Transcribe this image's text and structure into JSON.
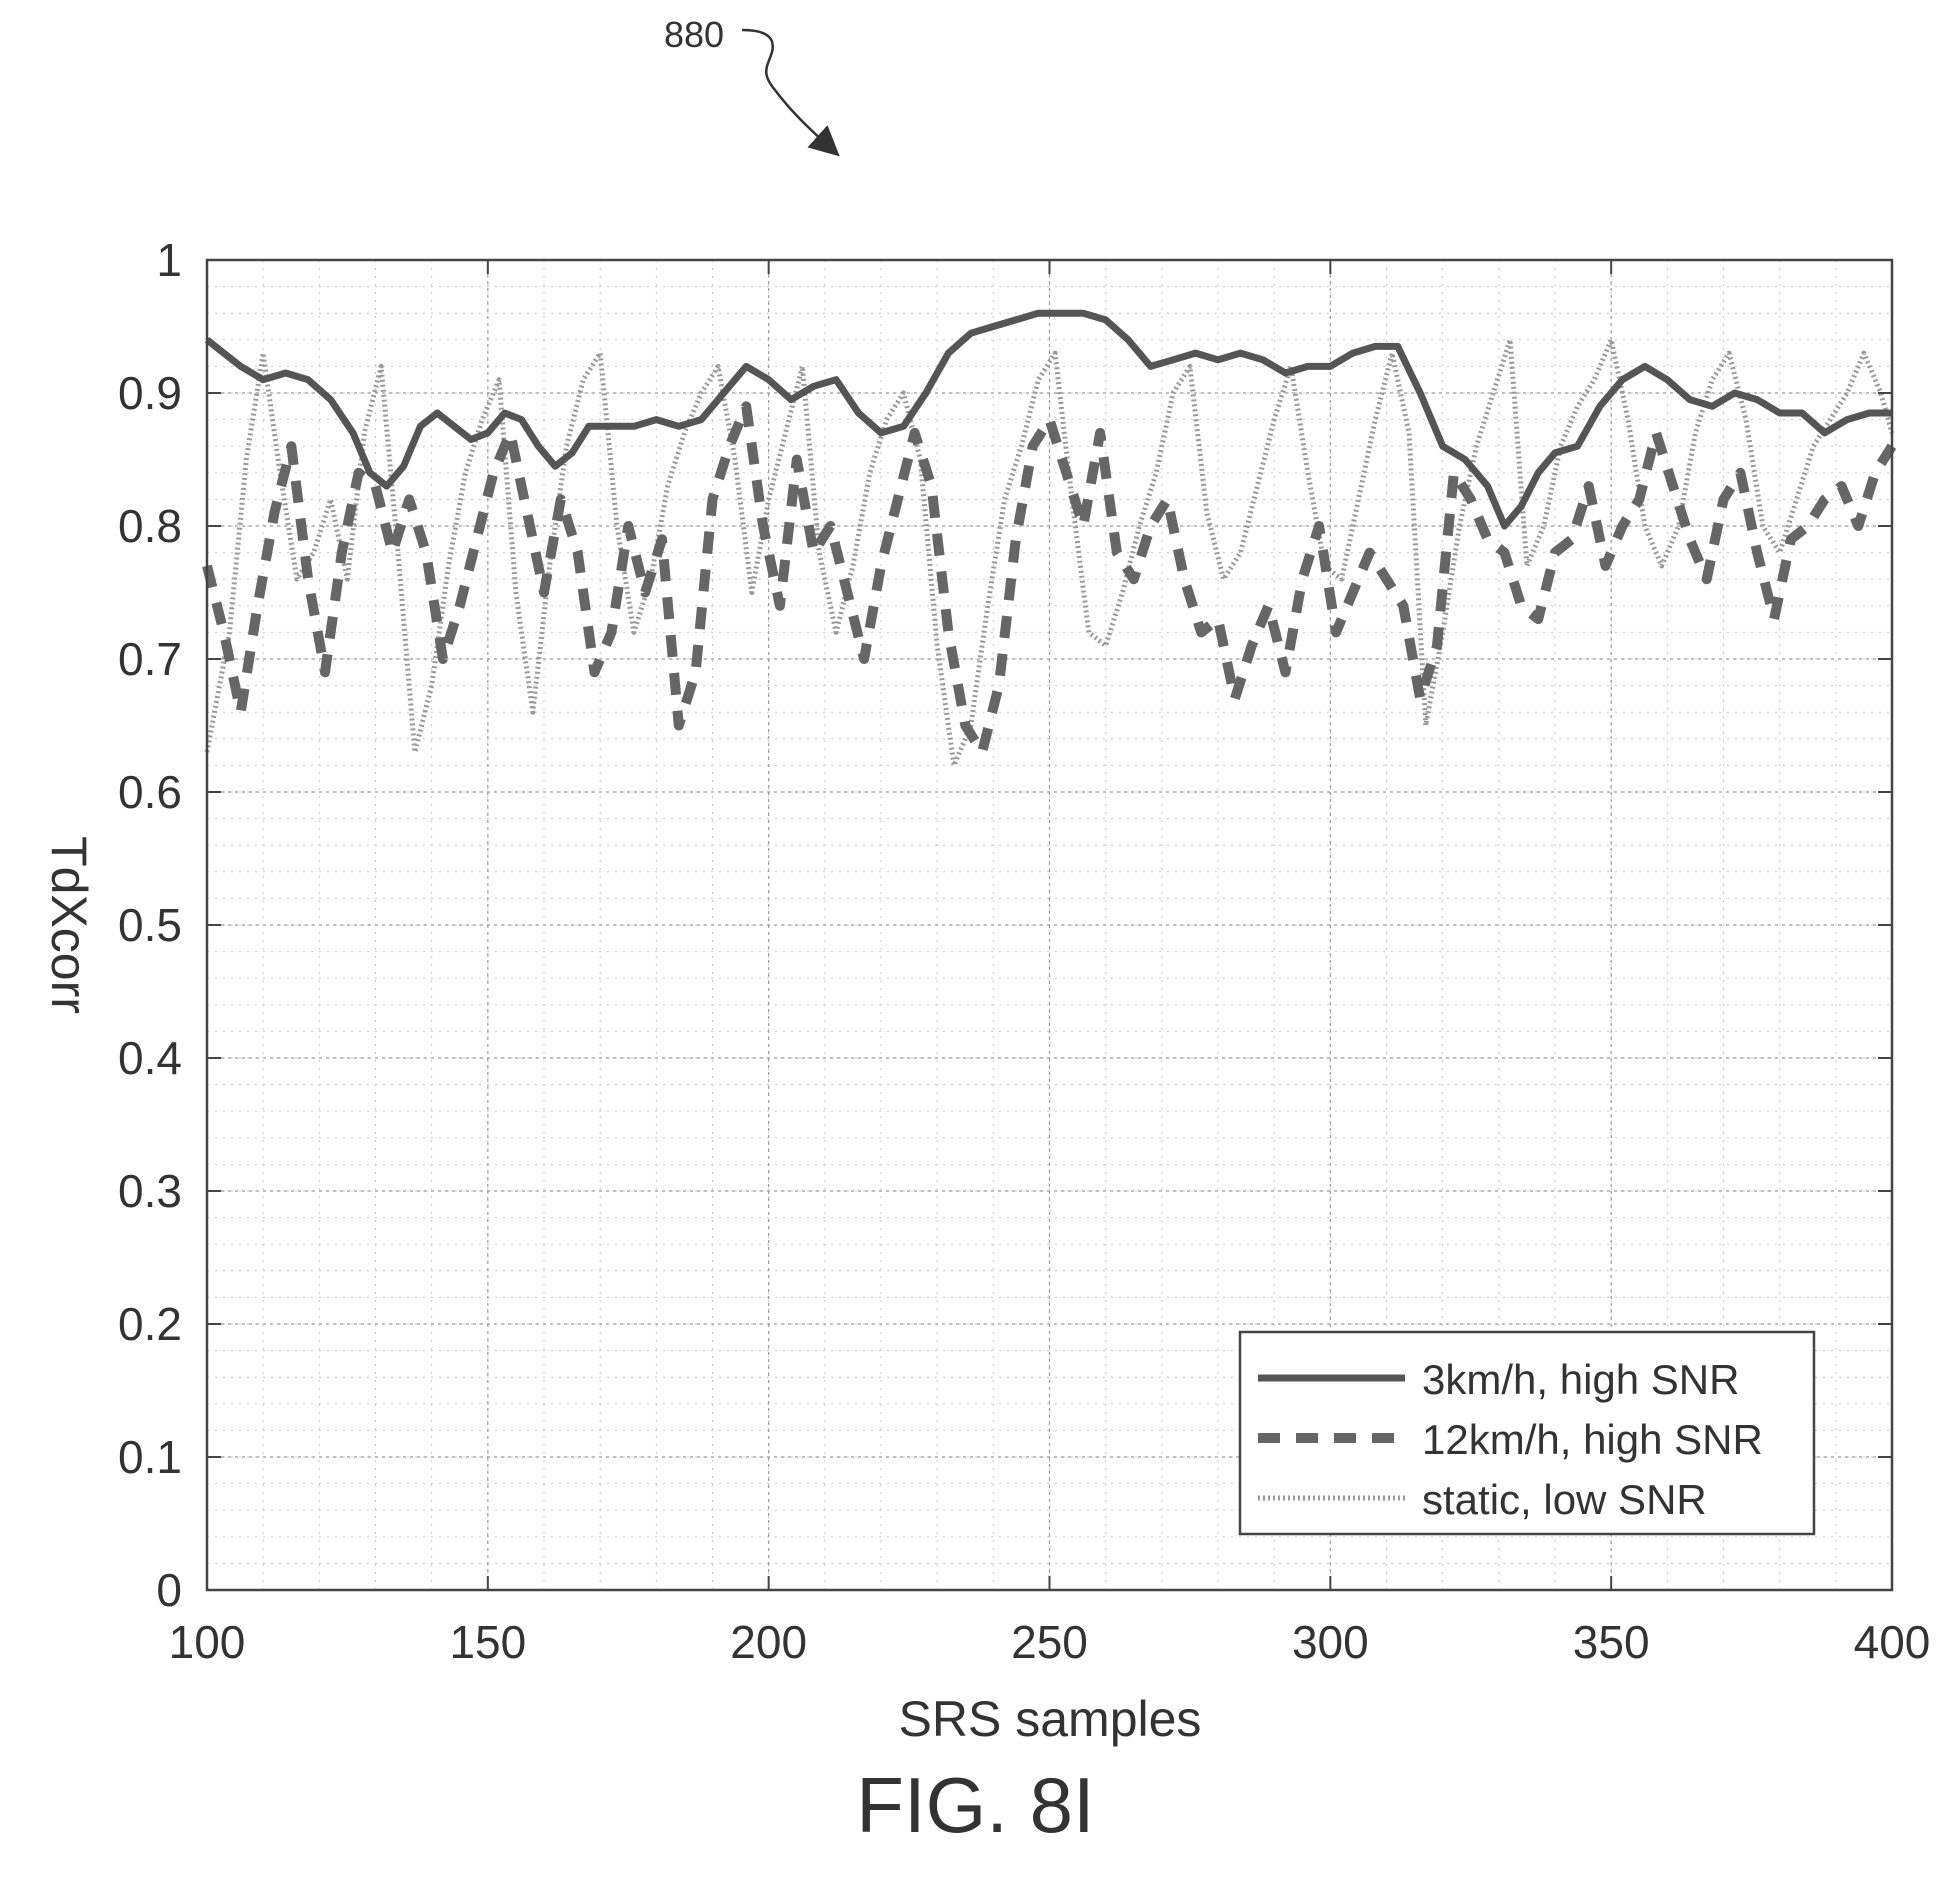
{
  "figure": {
    "caption": "FIG. 8I",
    "reference_numeral": "880"
  },
  "chart_data": {
    "type": "line",
    "xlabel": "SRS samples",
    "ylabel": "TdXcorr",
    "xlim": [
      100,
      400
    ],
    "ylim": [
      0,
      1
    ],
    "xticks": [
      100,
      150,
      200,
      250,
      300,
      350,
      400
    ],
    "yticks": [
      0,
      0.1,
      0.2,
      0.3,
      0.4,
      0.5,
      0.6,
      0.7,
      0.8,
      0.9,
      1
    ],
    "ytick_labels": [
      "0",
      "0.1",
      "0.2",
      "0.3",
      "0.4",
      "0.5",
      "0.6",
      "0.7",
      "0.8",
      "0.9",
      "1"
    ],
    "grid": true,
    "minor_grid": true,
    "legend_position": "bottom-right",
    "series": [
      {
        "name": "3km/h, high SNR",
        "style": "solid",
        "color": "#555555",
        "x": [
          100,
          103,
          106,
          110,
          114,
          118,
          122,
          126,
          129,
          132,
          135,
          138,
          141,
          144,
          147,
          150,
          153,
          156,
          159,
          162,
          165,
          168,
          172,
          176,
          180,
          184,
          188,
          192,
          196,
          200,
          204,
          208,
          212,
          216,
          220,
          224,
          228,
          232,
          236,
          240,
          244,
          248,
          252,
          256,
          260,
          264,
          268,
          272,
          276,
          280,
          284,
          288,
          292,
          296,
          300,
          304,
          308,
          312,
          316,
          320,
          324,
          328,
          331,
          334,
          337,
          340,
          344,
          348,
          352,
          356,
          360,
          364,
          368,
          372,
          376,
          380,
          384,
          388,
          392,
          396,
          400
        ],
        "y": [
          0.94,
          0.93,
          0.92,
          0.91,
          0.915,
          0.91,
          0.895,
          0.87,
          0.84,
          0.83,
          0.845,
          0.875,
          0.885,
          0.875,
          0.865,
          0.87,
          0.885,
          0.88,
          0.86,
          0.845,
          0.855,
          0.875,
          0.875,
          0.875,
          0.88,
          0.875,
          0.88,
          0.9,
          0.92,
          0.91,
          0.895,
          0.905,
          0.91,
          0.885,
          0.87,
          0.875,
          0.9,
          0.93,
          0.945,
          0.95,
          0.955,
          0.96,
          0.96,
          0.96,
          0.955,
          0.94,
          0.92,
          0.925,
          0.93,
          0.925,
          0.93,
          0.925,
          0.915,
          0.92,
          0.92,
          0.93,
          0.935,
          0.935,
          0.9,
          0.86,
          0.85,
          0.83,
          0.8,
          0.815,
          0.84,
          0.855,
          0.86,
          0.89,
          0.91,
          0.92,
          0.91,
          0.895,
          0.89,
          0.9,
          0.895,
          0.885,
          0.885,
          0.87,
          0.88,
          0.885,
          0.885
        ]
      },
      {
        "name": "12km/h, high SNR",
        "style": "dashed",
        "color": "#666666",
        "x": [
          100,
          103,
          106,
          109,
          112,
          115,
          118,
          121,
          124,
          127,
          130,
          133,
          136,
          139,
          142,
          145,
          148,
          151,
          154,
          157,
          160,
          163,
          166,
          169,
          172,
          175,
          178,
          181,
          184,
          187,
          190,
          193,
          196,
          199,
          202,
          205,
          208,
          211,
          214,
          217,
          220,
          223,
          226,
          229,
          232,
          235,
          238,
          241,
          244,
          247,
          250,
          253,
          256,
          259,
          262,
          265,
          268,
          271,
          274,
          277,
          280,
          283,
          286,
          289,
          292,
          295,
          298,
          301,
          304,
          307,
          310,
          313,
          316,
          319,
          322,
          325,
          328,
          331,
          334,
          337,
          340,
          343,
          346,
          349,
          352,
          355,
          358,
          361,
          364,
          367,
          370,
          373,
          376,
          379,
          382,
          385,
          388,
          391,
          394,
          397,
          400
        ],
        "y": [
          0.77,
          0.72,
          0.66,
          0.74,
          0.81,
          0.86,
          0.76,
          0.69,
          0.78,
          0.84,
          0.83,
          0.78,
          0.82,
          0.78,
          0.7,
          0.74,
          0.79,
          0.84,
          0.87,
          0.81,
          0.75,
          0.82,
          0.78,
          0.69,
          0.72,
          0.8,
          0.75,
          0.79,
          0.65,
          0.69,
          0.82,
          0.86,
          0.89,
          0.8,
          0.74,
          0.85,
          0.78,
          0.8,
          0.75,
          0.7,
          0.77,
          0.82,
          0.87,
          0.83,
          0.72,
          0.65,
          0.63,
          0.68,
          0.79,
          0.86,
          0.88,
          0.84,
          0.8,
          0.87,
          0.78,
          0.76,
          0.8,
          0.82,
          0.76,
          0.72,
          0.73,
          0.67,
          0.71,
          0.74,
          0.69,
          0.76,
          0.8,
          0.72,
          0.75,
          0.78,
          0.76,
          0.74,
          0.67,
          0.71,
          0.84,
          0.82,
          0.79,
          0.78,
          0.74,
          0.73,
          0.78,
          0.79,
          0.83,
          0.77,
          0.8,
          0.82,
          0.87,
          0.83,
          0.79,
          0.76,
          0.82,
          0.84,
          0.78,
          0.73,
          0.79,
          0.8,
          0.82,
          0.83,
          0.8,
          0.84,
          0.86
        ]
      },
      {
        "name": "static, low SNR",
        "style": "dotted",
        "color": "#999999",
        "x": [
          100,
          104,
          107,
          110,
          113,
          116,
          119,
          122,
          125,
          128,
          131,
          134,
          137,
          140,
          143,
          146,
          149,
          152,
          155,
          158,
          161,
          164,
          167,
          170,
          173,
          176,
          179,
          182,
          185,
          188,
          191,
          194,
          197,
          200,
          203,
          206,
          209,
          212,
          215,
          218,
          221,
          224,
          227,
          230,
          233,
          236,
          239,
          242,
          245,
          248,
          251,
          254,
          257,
          260,
          263,
          266,
          269,
          272,
          275,
          278,
          281,
          284,
          287,
          290,
          293,
          296,
          299,
          302,
          305,
          308,
          311,
          314,
          317,
          320,
          323,
          326,
          329,
          332,
          335,
          338,
          341,
          344,
          347,
          350,
          353,
          356,
          359,
          362,
          365,
          368,
          371,
          374,
          377,
          380,
          383,
          386,
          389,
          392,
          395,
          398,
          400
        ],
        "y": [
          0.63,
          0.72,
          0.85,
          0.93,
          0.84,
          0.76,
          0.78,
          0.82,
          0.76,
          0.87,
          0.92,
          0.78,
          0.63,
          0.68,
          0.77,
          0.84,
          0.88,
          0.91,
          0.75,
          0.66,
          0.77,
          0.86,
          0.91,
          0.93,
          0.8,
          0.72,
          0.76,
          0.83,
          0.87,
          0.9,
          0.92,
          0.85,
          0.75,
          0.82,
          0.87,
          0.92,
          0.78,
          0.72,
          0.77,
          0.84,
          0.88,
          0.9,
          0.85,
          0.71,
          0.62,
          0.65,
          0.74,
          0.82,
          0.86,
          0.91,
          0.93,
          0.82,
          0.72,
          0.71,
          0.75,
          0.8,
          0.84,
          0.9,
          0.92,
          0.81,
          0.76,
          0.78,
          0.83,
          0.88,
          0.92,
          0.84,
          0.77,
          0.76,
          0.82,
          0.88,
          0.93,
          0.87,
          0.65,
          0.72,
          0.8,
          0.86,
          0.9,
          0.94,
          0.77,
          0.8,
          0.86,
          0.89,
          0.91,
          0.94,
          0.88,
          0.8,
          0.77,
          0.8,
          0.87,
          0.91,
          0.93,
          0.88,
          0.8,
          0.78,
          0.82,
          0.86,
          0.88,
          0.9,
          0.93,
          0.9,
          0.87
        ]
      }
    ]
  }
}
